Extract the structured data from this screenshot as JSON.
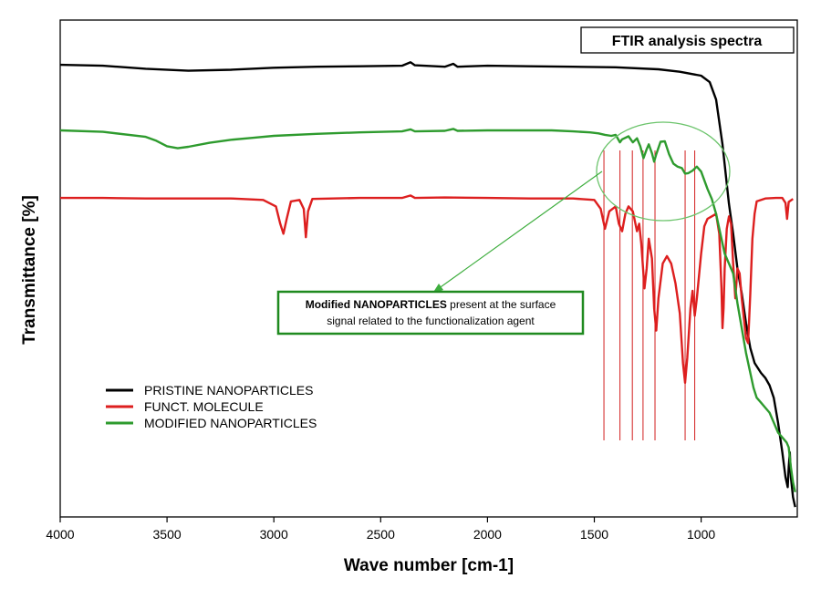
{
  "chart_data": {
    "type": "line",
    "title": "FTIR analysis spectra",
    "xlabel": "Wave number [cm-1]",
    "ylabel": "Transmittance [%]",
    "xlim": [
      4000,
      550
    ],
    "x_ticks": [
      4000,
      3500,
      3000,
      2500,
      2000,
      1500,
      1000
    ],
    "ylim": [
      0,
      100
    ],
    "y_ticks_shown": false,
    "grid": false,
    "legend_position": "bottom-left",
    "series": [
      {
        "name": "PRISTINE NANOPARTICLES",
        "color": "#000000",
        "points": [
          [
            4000,
            91
          ],
          [
            3800,
            90.8
          ],
          [
            3600,
            90.2
          ],
          [
            3400,
            89.8
          ],
          [
            3200,
            90
          ],
          [
            3000,
            90.4
          ],
          [
            2800,
            90.6
          ],
          [
            2600,
            90.7
          ],
          [
            2400,
            90.8
          ],
          [
            2360,
            91.5
          ],
          [
            2340,
            90.9
          ],
          [
            2200,
            90.6
          ],
          [
            2160,
            91.2
          ],
          [
            2140,
            90.6
          ],
          [
            2000,
            90.8
          ],
          [
            1800,
            90.7
          ],
          [
            1600,
            90.6
          ],
          [
            1400,
            90.5
          ],
          [
            1200,
            90.1
          ],
          [
            1100,
            89.6
          ],
          [
            1000,
            88.8
          ],
          [
            960,
            87.5
          ],
          [
            930,
            84
          ],
          [
            900,
            75
          ],
          [
            870,
            63
          ],
          [
            850,
            57
          ],
          [
            830,
            50
          ],
          [
            810,
            45
          ],
          [
            790,
            39
          ],
          [
            770,
            34
          ],
          [
            750,
            31
          ],
          [
            720,
            29
          ],
          [
            700,
            28
          ],
          [
            680,
            26.5
          ],
          [
            660,
            24
          ],
          [
            640,
            19
          ],
          [
            620,
            13
          ],
          [
            605,
            8
          ],
          [
            595,
            6
          ],
          [
            590,
            10
          ],
          [
            585,
            13
          ],
          [
            580,
            8
          ],
          [
            570,
            4
          ],
          [
            560,
            2
          ]
        ]
      },
      {
        "name": "FUNCT. MOLECULE",
        "color": "#dd1f1f",
        "points": [
          [
            4000,
            64.2
          ],
          [
            3800,
            64.2
          ],
          [
            3600,
            64.1
          ],
          [
            3400,
            64.1
          ],
          [
            3200,
            64.1
          ],
          [
            3050,
            63.8
          ],
          [
            2990,
            62.5
          ],
          [
            2970,
            59
          ],
          [
            2955,
            57
          ],
          [
            2940,
            60
          ],
          [
            2920,
            63.5
          ],
          [
            2880,
            63.8
          ],
          [
            2860,
            62
          ],
          [
            2850,
            56.3
          ],
          [
            2840,
            61.5
          ],
          [
            2820,
            64
          ],
          [
            2600,
            64.2
          ],
          [
            2400,
            64.2
          ],
          [
            2360,
            64.7
          ],
          [
            2340,
            64.2
          ],
          [
            2200,
            64.3
          ],
          [
            2000,
            64.2
          ],
          [
            1800,
            64.1
          ],
          [
            1600,
            64.1
          ],
          [
            1500,
            63.8
          ],
          [
            1470,
            62
          ],
          [
            1450,
            58
          ],
          [
            1430,
            61.5
          ],
          [
            1400,
            62.5
          ],
          [
            1385,
            59
          ],
          [
            1370,
            57.5
          ],
          [
            1355,
            61
          ],
          [
            1340,
            62.5
          ],
          [
            1320,
            61.5
          ],
          [
            1300,
            57.5
          ],
          [
            1290,
            59
          ],
          [
            1280,
            55
          ],
          [
            1265,
            46
          ],
          [
            1255,
            50
          ],
          [
            1245,
            56
          ],
          [
            1230,
            52
          ],
          [
            1220,
            42
          ],
          [
            1210,
            37.5
          ],
          [
            1200,
            44
          ],
          [
            1180,
            51
          ],
          [
            1160,
            52.5
          ],
          [
            1140,
            51
          ],
          [
            1120,
            47
          ],
          [
            1100,
            41
          ],
          [
            1085,
            31
          ],
          [
            1075,
            27
          ],
          [
            1065,
            32
          ],
          [
            1050,
            42
          ],
          [
            1040,
            45.5
          ],
          [
            1030,
            40.5
          ],
          [
            1020,
            44
          ],
          [
            1000,
            53
          ],
          [
            985,
            58.5
          ],
          [
            970,
            60
          ],
          [
            950,
            60.5
          ],
          [
            930,
            61
          ],
          [
            915,
            57
          ],
          [
            905,
            46
          ],
          [
            900,
            38
          ],
          [
            895,
            42
          ],
          [
            890,
            50
          ],
          [
            880,
            58
          ],
          [
            870,
            60.5
          ],
          [
            860,
            59
          ],
          [
            850,
            51
          ],
          [
            840,
            44
          ],
          [
            830,
            50
          ],
          [
            820,
            49
          ],
          [
            810,
            44
          ],
          [
            800,
            40
          ],
          [
            790,
            36
          ],
          [
            780,
            35
          ],
          [
            770,
            45
          ],
          [
            760,
            56
          ],
          [
            750,
            61
          ],
          [
            740,
            63.5
          ],
          [
            700,
            64.1
          ],
          [
            650,
            64.2
          ],
          [
            620,
            64.2
          ],
          [
            605,
            63.2
          ],
          [
            598,
            60
          ],
          [
            590,
            63.4
          ],
          [
            570,
            64
          ]
        ]
      },
      {
        "name": "MODIFIED NANOPARTICLES",
        "color": "#2e9b2e",
        "points": [
          [
            4000,
            77.8
          ],
          [
            3800,
            77.5
          ],
          [
            3600,
            76.5
          ],
          [
            3550,
            75.7
          ],
          [
            3500,
            74.6
          ],
          [
            3450,
            74.2
          ],
          [
            3400,
            74.5
          ],
          [
            3300,
            75.3
          ],
          [
            3200,
            75.9
          ],
          [
            3100,
            76.3
          ],
          [
            3000,
            76.7
          ],
          [
            2800,
            77.1
          ],
          [
            2600,
            77.4
          ],
          [
            2400,
            77.6
          ],
          [
            2360,
            78
          ],
          [
            2340,
            77.6
          ],
          [
            2200,
            77.7
          ],
          [
            2160,
            78.1
          ],
          [
            2140,
            77.7
          ],
          [
            2000,
            77.8
          ],
          [
            1800,
            77.8
          ],
          [
            1700,
            77.8
          ],
          [
            1600,
            77.6
          ],
          [
            1520,
            77.4
          ],
          [
            1480,
            77.2
          ],
          [
            1450,
            76.9
          ],
          [
            1420,
            76.7
          ],
          [
            1400,
            76.9
          ],
          [
            1380,
            75.4
          ],
          [
            1370,
            76
          ],
          [
            1340,
            76.6
          ],
          [
            1320,
            75.4
          ],
          [
            1300,
            76.2
          ],
          [
            1285,
            74.6
          ],
          [
            1270,
            72.2
          ],
          [
            1255,
            74
          ],
          [
            1245,
            75
          ],
          [
            1230,
            73.2
          ],
          [
            1220,
            71.5
          ],
          [
            1210,
            73
          ],
          [
            1190,
            75.5
          ],
          [
            1170,
            75.6
          ],
          [
            1150,
            73
          ],
          [
            1130,
            71.1
          ],
          [
            1110,
            70.5
          ],
          [
            1090,
            70.2
          ],
          [
            1075,
            69.1
          ],
          [
            1060,
            69.2
          ],
          [
            1040,
            69.7
          ],
          [
            1020,
            70.5
          ],
          [
            1000,
            69.5
          ],
          [
            970,
            66
          ],
          [
            950,
            64
          ],
          [
            930,
            61
          ],
          [
            910,
            57
          ],
          [
            890,
            53
          ],
          [
            870,
            51
          ],
          [
            850,
            49
          ],
          [
            830,
            43
          ],
          [
            810,
            38
          ],
          [
            790,
            33
          ],
          [
            770,
            29
          ],
          [
            755,
            26
          ],
          [
            740,
            24
          ],
          [
            720,
            23
          ],
          [
            700,
            22
          ],
          [
            680,
            21
          ],
          [
            660,
            19
          ],
          [
            640,
            17
          ],
          [
            620,
            16
          ],
          [
            600,
            15
          ],
          [
            590,
            14
          ],
          [
            580,
            10
          ],
          [
            570,
            7
          ],
          [
            560,
            5
          ]
        ]
      }
    ],
    "marker_lines_x": [
      1455,
      1380,
      1322,
      1272,
      1216,
      1075,
      1030
    ],
    "annotation": {
      "bold_text": "Modified NANOPARTICLES",
      "text_line1_rest": " present at the surface",
      "text_line2": "signal related to the functionalization agent"
    }
  }
}
